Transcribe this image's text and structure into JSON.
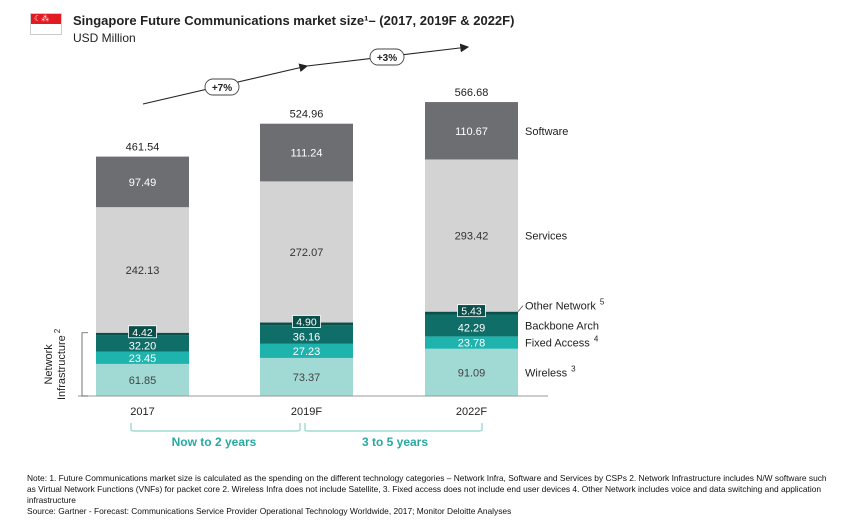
{
  "header": {
    "title": "Singapore Future Communications market size¹– (2017, 2019F & 2022F)",
    "subtitle": "USD Million",
    "flag_icon": "singapore-flag-icon"
  },
  "colors": {
    "software": "#6d6e71",
    "services": "#d3d3d3",
    "other_network": "#0b4f4a",
    "backbone": "#0f6e68",
    "fixed_access": "#1fb3ad",
    "wireless": "#a1d9d4",
    "period_text": "#27a9a1",
    "bracket": "#8bd3cc"
  },
  "chart_data": {
    "type": "bar",
    "stacked": true,
    "categories": [
      "2017",
      "2019F",
      "2022F"
    ],
    "series": [
      {
        "name": "Wireless",
        "sup": "3",
        "values": [
          61.85,
          73.37,
          91.09
        ]
      },
      {
        "name": "Fixed Access",
        "sup": "4",
        "values": [
          23.45,
          27.23,
          23.78
        ]
      },
      {
        "name": "Backbone Arch",
        "sup": "",
        "values": [
          32.2,
          36.16,
          42.29
        ]
      },
      {
        "name": "Other Network",
        "sup": "5",
        "values": [
          4.42,
          4.9,
          5.43
        ]
      },
      {
        "name": "Services",
        "sup": "",
        "values": [
          242.13,
          272.07,
          293.42
        ]
      },
      {
        "name": "Software",
        "sup": "",
        "values": [
          97.49,
          111.24,
          110.67
        ]
      }
    ],
    "value_labels": [
      [
        "61.85",
        "23.45",
        "32.20",
        "4.42",
        "242.13",
        "97.49"
      ],
      [
        "73.37",
        "27.23",
        "36.16",
        "4.90",
        "272.07",
        "111.24"
      ],
      [
        "91.09",
        "23.78",
        "42.29",
        "5.43",
        "293.42",
        "110.67"
      ]
    ],
    "totals": [
      "461.54",
      "524.96",
      "566.68"
    ],
    "growth_labels": [
      "+7%",
      "+3%"
    ],
    "y_axis_label": "Network Infrastructure",
    "y_axis_label_sup": "2",
    "periods": [
      "Now to 2 years",
      "3 to 5 years"
    ]
  },
  "notes": {
    "line1": "Note: 1. Future Communications market size is calculated as the spending on the different technology categories – Network Infra, Software and Services by CSPs 2. Network Infrastructure includes N/W software such as Virtual Network Functions (VNFs) for packet core  2. Wireless Infra does not include Satellite, 3. Fixed access does not include end user devices 4. Other Network includes voice and data switching and application infrastructure",
    "source": "Source: Gartner - Forecast: Communications Service Provider Operational Technology Worldwide, 2017; Monitor Deloitte Analyses"
  }
}
